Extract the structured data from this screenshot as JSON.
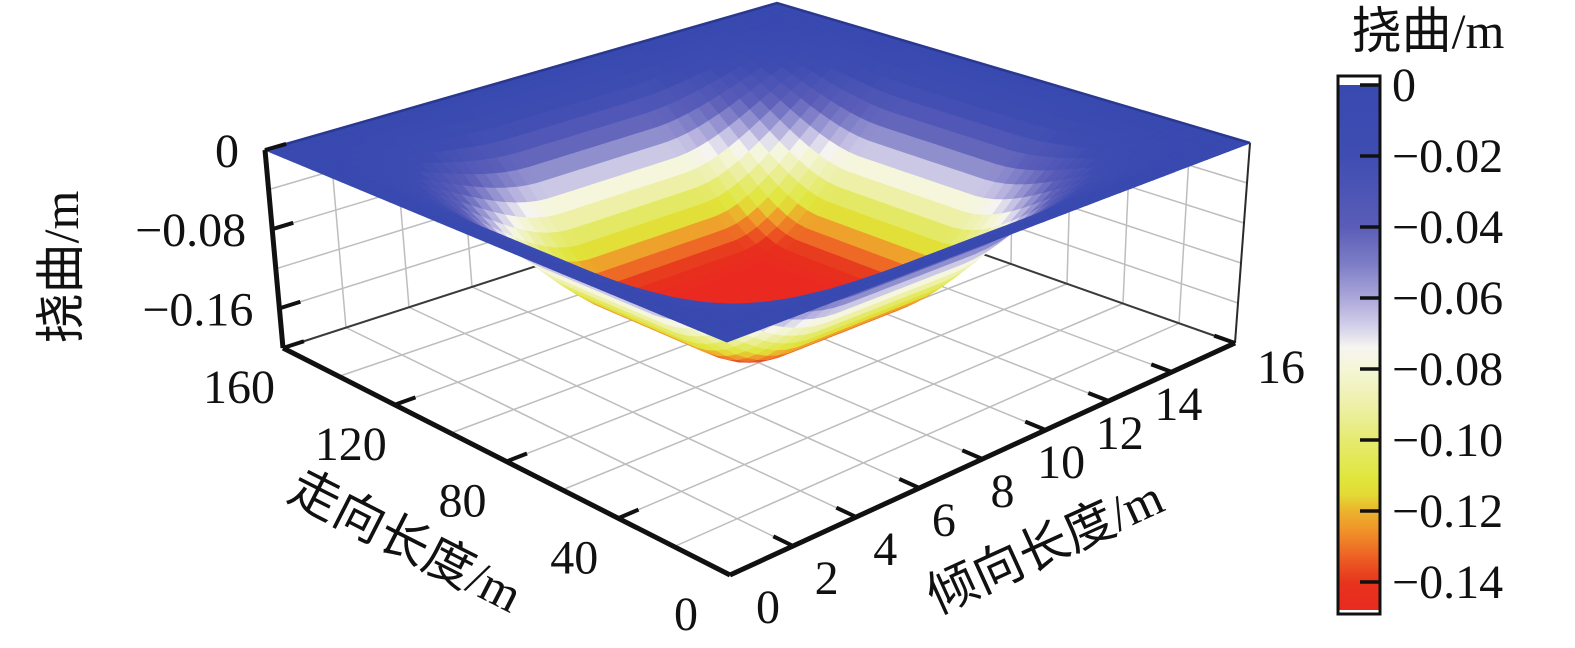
{
  "figure": {
    "kind": "3d-surface-plot",
    "background": "#ffffff"
  },
  "chart_data": {
    "type": "surface",
    "x_axis": {
      "label": "走向长度/m",
      "min": 0,
      "max": 160,
      "ticks": [
        0,
        40,
        80,
        120,
        160
      ],
      "tick_labels": [
        "0",
        "40",
        "80",
        "120",
        "160"
      ],
      "grid_step": 20
    },
    "y_axis": {
      "label": "倾向长度/m",
      "min": 0,
      "max": 16,
      "ticks": [
        0,
        2,
        4,
        6,
        8,
        10,
        12,
        14,
        16
      ],
      "tick_labels": [
        "0",
        "2",
        "4",
        "6",
        "8",
        "10",
        "12",
        "14",
        "16"
      ],
      "grid_step": 2
    },
    "z_axis": {
      "label": "挠曲/m",
      "min": -0.2,
      "max": 0,
      "ticks": [
        0,
        -0.08,
        -0.16
      ],
      "tick_labels": [
        "0",
        "−0.08",
        "−0.16"
      ],
      "grid_step": 0.04
    },
    "colorbar": {
      "title": "挠曲/m",
      "min": -0.148,
      "max": 0,
      "ticks": [
        0,
        -0.02,
        -0.04,
        -0.06,
        -0.08,
        -0.1,
        -0.12,
        -0.14
      ],
      "tick_labels": [
        "0",
        "−0.02",
        "−0.04",
        "−0.06",
        "−0.08",
        "−0.10",
        "−0.12",
        "−0.14"
      ]
    },
    "colormap": [
      [
        0.0,
        "#3849b0"
      ],
      [
        0.135,
        "#3f4db2"
      ],
      [
        0.27,
        "#5a5db8"
      ],
      [
        0.34,
        "#7c7cc6"
      ],
      [
        0.41,
        "#aeaadb"
      ],
      [
        0.46,
        "#d3d0e9"
      ],
      [
        0.5,
        "#f7f5f0"
      ],
      [
        0.54,
        "#f4f6d7"
      ],
      [
        0.61,
        "#edf0a8"
      ],
      [
        0.68,
        "#e5ea6d"
      ],
      [
        0.75,
        "#e0e63c"
      ],
      [
        0.78,
        "#e3da35"
      ],
      [
        0.81,
        "#eab52d"
      ],
      [
        0.845,
        "#f0962a"
      ],
      [
        0.88,
        "#ef7426"
      ],
      [
        0.915,
        "#eb5122"
      ],
      [
        0.95,
        "#e7331d"
      ],
      [
        1.0,
        "#ea2a20"
      ]
    ],
    "surface": {
      "model": "z = amplitude * g(x/160) * g(y/16); g = smoothstep plateau with edge_fraction",
      "amplitude": -0.148,
      "edge_fraction": 0.38,
      "x_samples": [
        0,
        20,
        40,
        60,
        80,
        100,
        120,
        140,
        160
      ],
      "y_samples": [
        0,
        2,
        4,
        6,
        8,
        10,
        12,
        14,
        16
      ],
      "z_grid_sample": [
        [
          0,
          0,
          0,
          0,
          0,
          0,
          0,
          0,
          0
        ],
        [
          0,
          -0.0095,
          -0.0273,
          -0.0375,
          -0.0375,
          -0.0375,
          -0.0273,
          -0.0095,
          0
        ],
        [
          0,
          -0.0273,
          -0.0787,
          -0.1079,
          -0.1079,
          -0.1079,
          -0.0787,
          -0.0273,
          0
        ],
        [
          0,
          -0.0375,
          -0.1079,
          -0.1478,
          -0.1479,
          -0.1478,
          -0.1079,
          -0.0375,
          0
        ],
        [
          0,
          -0.0375,
          -0.1079,
          -0.1479,
          -0.148,
          -0.1479,
          -0.1079,
          -0.0375,
          0
        ],
        [
          0,
          -0.0375,
          -0.1079,
          -0.1478,
          -0.1479,
          -0.1478,
          -0.1079,
          -0.0375,
          0
        ],
        [
          0,
          -0.0273,
          -0.0787,
          -0.1079,
          -0.1079,
          -0.1079,
          -0.0787,
          -0.0273,
          0
        ],
        [
          0,
          -0.0095,
          -0.0273,
          -0.0375,
          -0.0375,
          -0.0375,
          -0.0273,
          -0.0095,
          0
        ],
        [
          0,
          0,
          0,
          0,
          0,
          0,
          0,
          0,
          0
        ]
      ]
    },
    "style": {
      "grid_color": "#bdbdbd",
      "axis_color": "#111111",
      "surface_edge_color": "#2a3890"
    }
  }
}
